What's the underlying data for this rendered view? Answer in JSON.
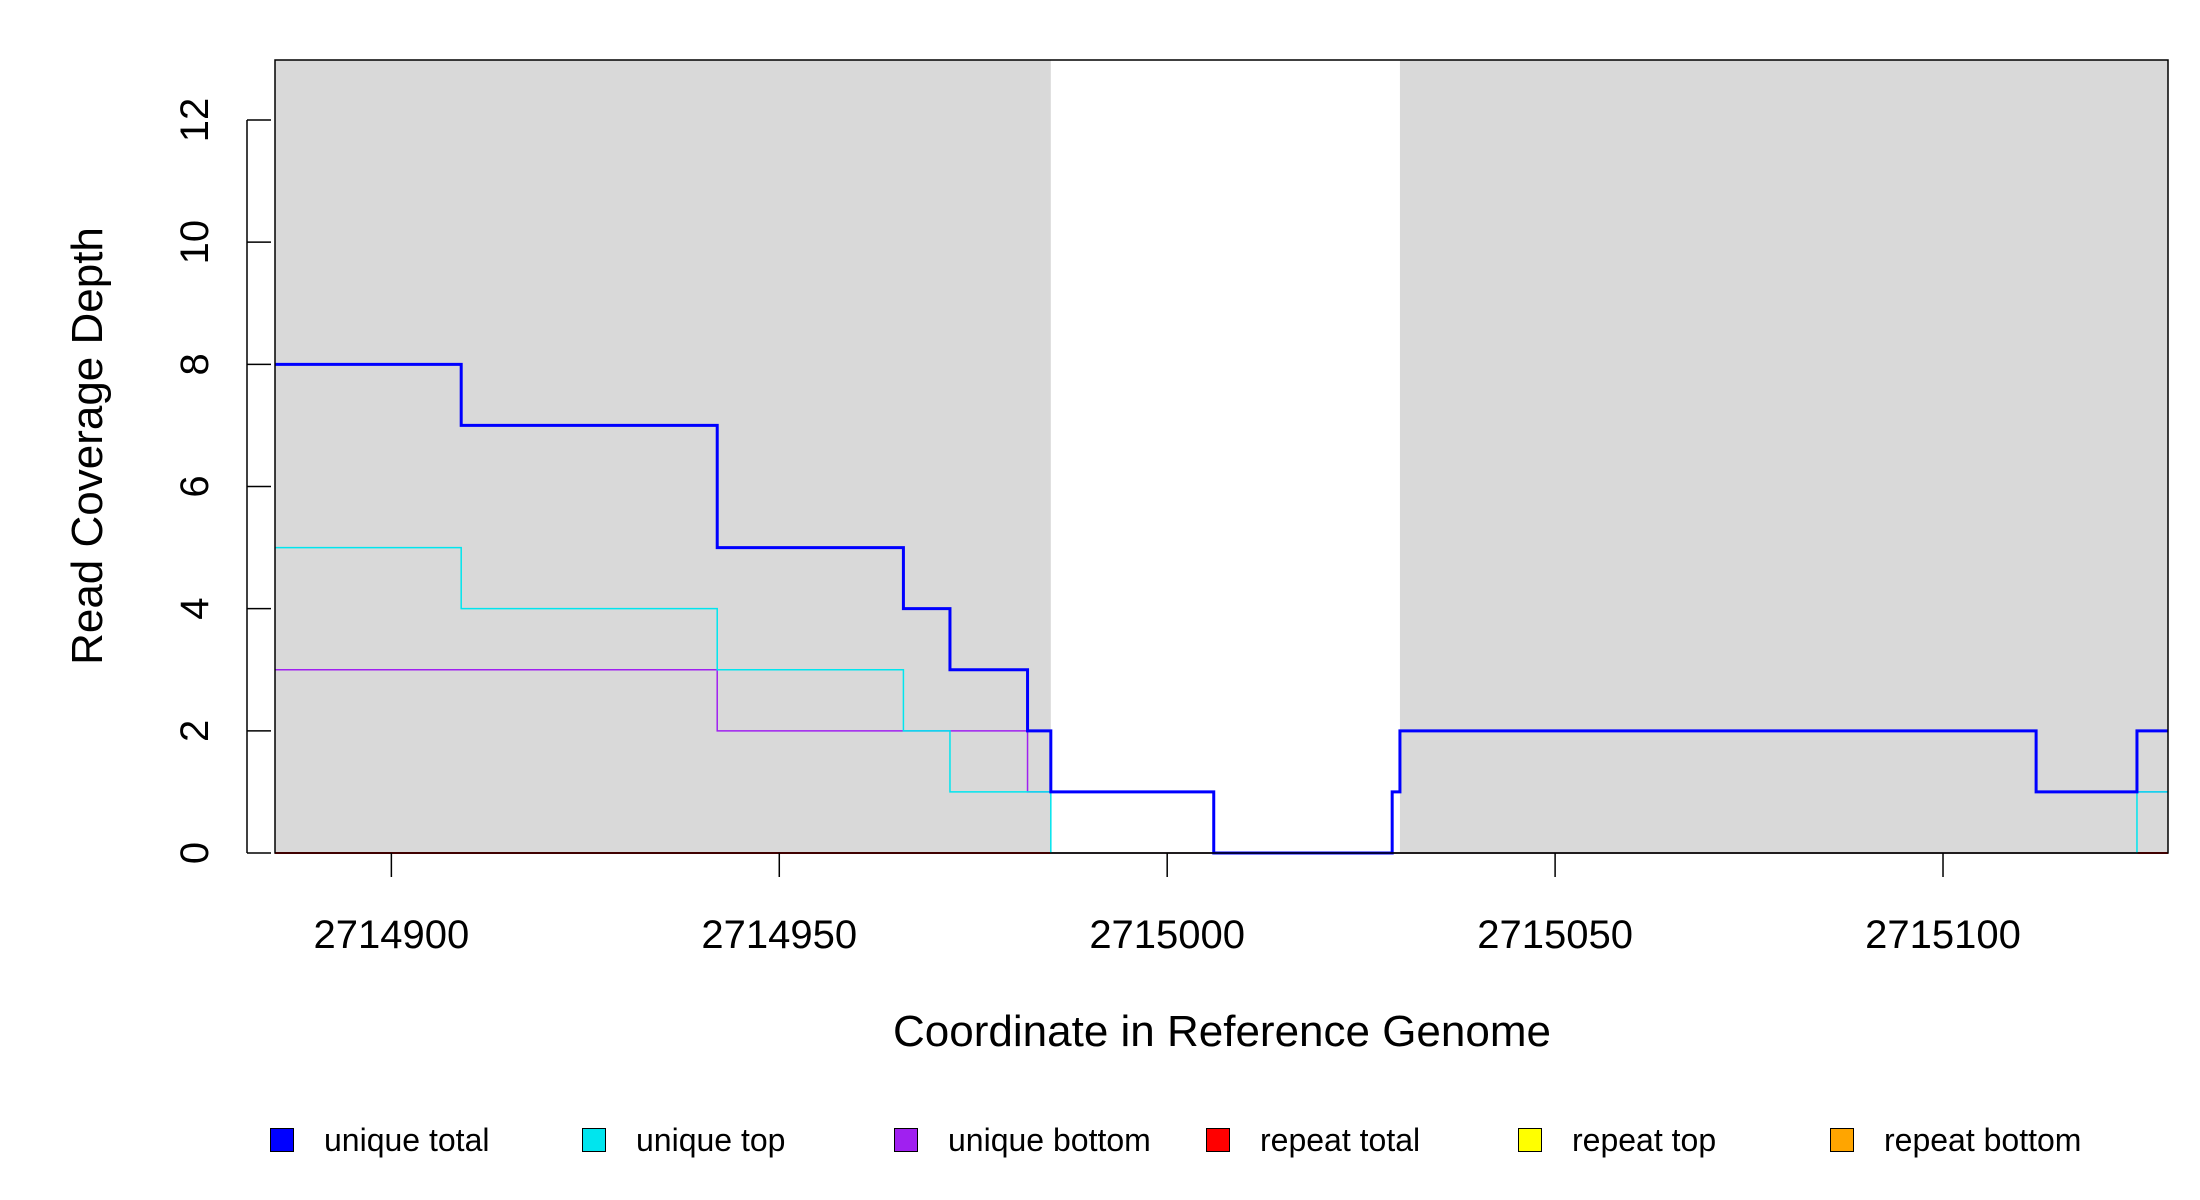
{
  "chart_data": {
    "type": "line",
    "title": "",
    "xlabel": "Coordinate in Reference Genome",
    "ylabel": "Read Coverage Depth",
    "xlim": [
      2714885,
      2715129
    ],
    "ylim": [
      0,
      13
    ],
    "xticks": [
      2714900,
      2714950,
      2715000,
      2715050,
      2715100
    ],
    "xtick_labels": [
      "2714900",
      "2714950",
      "2715000",
      "2715050",
      "2715100"
    ],
    "yticks": [
      0,
      2,
      4,
      6,
      8,
      10,
      12
    ],
    "ytick_labels": [
      "0",
      "2",
      "4",
      "6",
      "8",
      "10",
      "12"
    ],
    "shaded_regions": [
      {
        "x_start": 2714885,
        "x_end": 2714985,
        "color": "#d9d9d9"
      },
      {
        "x_start": 2715030,
        "x_end": 2715129,
        "color": "#d9d9d9"
      }
    ],
    "step": true,
    "series": [
      {
        "name": "unique total",
        "color": "#0000ff",
        "steps": [
          [
            2714885,
            8
          ],
          [
            2714909,
            7
          ],
          [
            2714942,
            5
          ],
          [
            2714966,
            4
          ],
          [
            2714972,
            3
          ],
          [
            2714982,
            2
          ],
          [
            2714985,
            1
          ],
          [
            2715006,
            0
          ],
          [
            2715029,
            1
          ],
          [
            2715030,
            2
          ],
          [
            2715112,
            1
          ],
          [
            2715125,
            2
          ]
        ]
      },
      {
        "name": "unique top",
        "color": "#00e5ee",
        "steps": [
          [
            2714885,
            5
          ],
          [
            2714909,
            4
          ],
          [
            2714942,
            3
          ],
          [
            2714966,
            2
          ],
          [
            2714972,
            1
          ],
          [
            2714985,
            0
          ],
          [
            2715125,
            1
          ]
        ]
      },
      {
        "name": "unique bottom",
        "color": "#a020f0",
        "steps": [
          [
            2714885,
            3
          ],
          [
            2714942,
            2
          ],
          [
            2714982,
            1
          ],
          [
            2715006,
            0
          ],
          [
            2715029,
            1
          ],
          [
            2715030,
            2
          ],
          [
            2715112,
            1
          ]
        ]
      },
      {
        "name": "repeat total",
        "color": "#ff0000",
        "steps": [
          [
            2714885,
            0
          ]
        ]
      },
      {
        "name": "repeat top",
        "color": "#ffff00",
        "steps": [
          [
            2714885,
            0
          ]
        ]
      },
      {
        "name": "repeat bottom",
        "color": "#ffa500",
        "steps": [
          [
            2714885,
            0
          ]
        ]
      }
    ],
    "legend_position": "bottom"
  }
}
